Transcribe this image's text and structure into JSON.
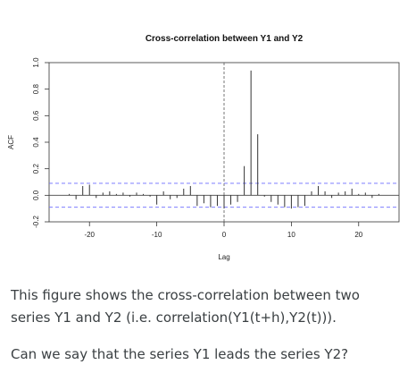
{
  "chart_data": {
    "type": "bar",
    "title": "Cross-correlation between Y1 and Y2",
    "xlabel": "Lag",
    "ylabel": "ACF",
    "xlim": [
      -26,
      26
    ],
    "ylim": [
      -0.2,
      1.0
    ],
    "x_ticks": [
      -20,
      -10,
      0,
      10,
      20
    ],
    "y_ticks": [
      -0.2,
      0.0,
      0.2,
      0.4,
      0.6,
      0.8,
      1.0
    ],
    "confidence_band": 0.09,
    "x": [
      -23,
      -22,
      -21,
      -20,
      -19,
      -18,
      -17,
      -16,
      -15,
      -14,
      -13,
      -12,
      -11,
      -10,
      -9,
      -8,
      -7,
      -6,
      -5,
      -4,
      -3,
      -2,
      -1,
      0,
      1,
      2,
      3,
      4,
      5,
      6,
      7,
      8,
      9,
      10,
      11,
      12,
      13,
      14,
      15,
      16,
      17,
      18,
      19,
      20,
      21,
      22,
      23
    ],
    "values": [
      0.01,
      -0.03,
      0.07,
      0.08,
      -0.02,
      0.02,
      0.03,
      0.01,
      0.02,
      -0.01,
      0.02,
      0.01,
      -0.01,
      -0.07,
      0.03,
      -0.03,
      -0.02,
      0.05,
      0.07,
      -0.08,
      -0.06,
      -0.09,
      -0.08,
      -0.1,
      -0.07,
      -0.05,
      0.22,
      0.94,
      0.46,
      -0.01,
      -0.05,
      -0.07,
      -0.09,
      -0.1,
      -0.09,
      -0.08,
      0.03,
      0.07,
      0.03,
      -0.02,
      0.02,
      0.03,
      0.05,
      0.01,
      0.02,
      -0.02,
      0.01
    ]
  },
  "caption": {
    "line1": "This figure shows the cross-correlation between two series Y1 and Y2 (i.e. correlation(Y1(t+h),Y2(t))).",
    "question": "Can we say that the series Y1 leads the series Y2?"
  }
}
